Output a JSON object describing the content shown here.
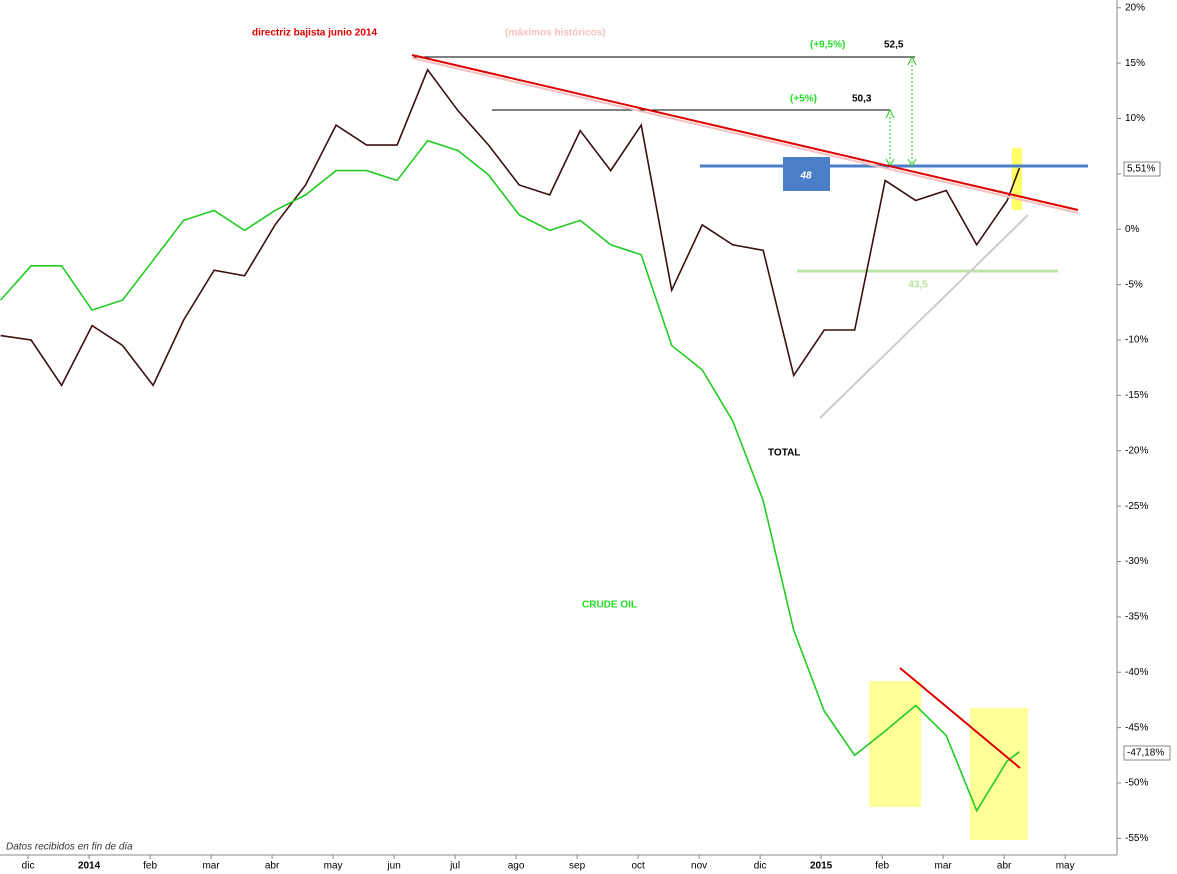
{
  "chart_data": {
    "type": "line",
    "x": [
      -0.45,
      0.05,
      0.55,
      1.05,
      1.55,
      2.05,
      2.55,
      3.05,
      3.55,
      4.05,
      4.55,
      5.05,
      5.55,
      6.05,
      6.55,
      7.05,
      7.55,
      8.05,
      8.55,
      9.05,
      9.55,
      10.05,
      10.55,
      11.05,
      11.55,
      12.05,
      12.55,
      13.05,
      13.55,
      14.05,
      14.55,
      15.05,
      15.55,
      16.05,
      16.25
    ],
    "series": [
      {
        "name": "TOTAL",
        "color": "#3a1010",
        "last_value_label": "5,51%",
        "values": [
          -9.6,
          -10.0,
          -14.1,
          -8.7,
          -10.5,
          -14.1,
          -8.2,
          -3.7,
          -4.2,
          0.4,
          4.0,
          9.4,
          7.6,
          7.6,
          14.4,
          10.7,
          7.6,
          4.0,
          3.1,
          8.9,
          5.3,
          9.4,
          -5.5,
          0.4,
          -1.4,
          -1.9,
          -13.2,
          -9.1,
          -9.1,
          4.4,
          2.6,
          3.5,
          -1.4,
          2.6,
          5.51
        ]
      },
      {
        "name": "CRUDE OIL",
        "color": "#22cc22",
        "last_value_label": "-47,18%",
        "values": [
          -6.4,
          -3.3,
          -3.3,
          -7.3,
          -6.4,
          -2.8,
          0.8,
          1.7,
          -0.1,
          1.7,
          3.1,
          5.3,
          5.3,
          4.4,
          8.0,
          7.1,
          4.9,
          1.3,
          -0.1,
          0.8,
          -1.4,
          -2.3,
          -10.5,
          -12.7,
          -17.3,
          -24.5,
          -36.2,
          -43.5,
          -47.5,
          -45.3,
          -43.0,
          -45.7,
          -52.5,
          -48.0,
          -47.18
        ]
      }
    ],
    "xlim": [
      -0.46,
      17.85
    ],
    "xticks": [
      {
        "value": 0,
        "label": "dic"
      },
      {
        "value": 1,
        "label": "2014"
      },
      {
        "value": 2,
        "label": "feb"
      },
      {
        "value": 3,
        "label": "mar"
      },
      {
        "value": 4,
        "label": "abr"
      },
      {
        "value": 5,
        "label": "may"
      },
      {
        "value": 6,
        "label": "jun"
      },
      {
        "value": 7,
        "label": "jul"
      },
      {
        "value": 8,
        "label": "ago"
      },
      {
        "value": 9,
        "label": "sep"
      },
      {
        "value": 10,
        "label": "oct"
      },
      {
        "value": 11,
        "label": "nov"
      },
      {
        "value": 12,
        "label": "dic"
      },
      {
        "value": 13,
        "label": "2015"
      },
      {
        "value": 14,
        "label": "feb"
      },
      {
        "value": 15,
        "label": "mar"
      },
      {
        "value": 16,
        "label": "abr"
      },
      {
        "value": 17,
        "label": "may"
      }
    ],
    "ylim": [
      -56.5,
      20.7
    ],
    "yticks": [
      {
        "value": 20,
        "label": "20%"
      },
      {
        "value": 15,
        "label": "15%"
      },
      {
        "value": 10,
        "label": "10%"
      },
      {
        "value": 5,
        "label": "5%"
      },
      {
        "value": 0,
        "label": "0%"
      },
      {
        "value": -5,
        "label": "-5%"
      },
      {
        "value": -10,
        "label": "-10%"
      },
      {
        "value": -15,
        "label": "-15%"
      },
      {
        "value": -20,
        "label": "-20%"
      },
      {
        "value": -25,
        "label": "-25%"
      },
      {
        "value": -30,
        "label": "-30%"
      },
      {
        "value": -35,
        "label": "-35%"
      },
      {
        "value": -40,
        "label": "-40%"
      },
      {
        "value": -45,
        "label": "-45%"
      },
      {
        "value": -50,
        "label": "-50%"
      },
      {
        "value": -55,
        "label": "-55%"
      }
    ],
    "annotations": [
      "directriz bajista junio 2014",
      "(máximos históricos)",
      "(+9,5%)",
      "52,5",
      "(+5%)",
      "50,3",
      "48",
      "43,5"
    ],
    "footnote": "Datos recibidos en fin de día"
  }
}
